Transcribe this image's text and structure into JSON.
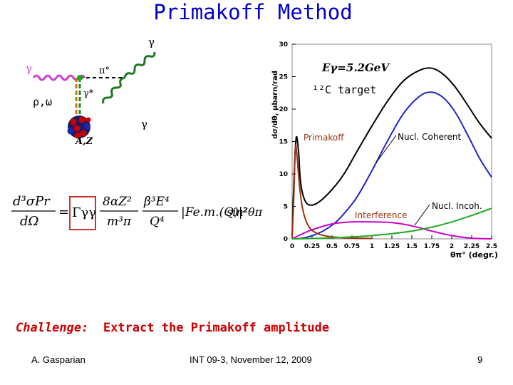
{
  "slide": {
    "title": "Primakoff Method",
    "challenge_label": "Challenge:",
    "challenge_text": "Extract the Primakoff amplitude",
    "footer_author": "A. Gasparian",
    "footer_event": "INT 09-3, November 12, 2009",
    "page_number": "9"
  },
  "diagram": {
    "gamma_in": "γ",
    "gamma_out_top": "γ",
    "gamma_out_bottom": "γ",
    "pion": "π°",
    "virtual_photon": "γ*",
    "exchange": "ρ,ω",
    "nucleus": "A,Z"
  },
  "formula": {
    "lhs_num": "d³σPr",
    "lhs_den": "dΩ",
    "gamma": "Γγγ",
    "frac1_num": "8αZ²",
    "frac1_den": "m³π",
    "frac2_num": "β³E⁴",
    "frac2_den": "Q⁴",
    "form_factor": "|Fe.m.(Q)|²",
    "sin_term": "sin²θπ"
  },
  "chart_data": {
    "type": "line",
    "ylabel": "dσ/dθ, μbarn/rad",
    "xlabel": "θπ° (degr.)",
    "xlim": [
      0,
      2.5
    ],
    "ylim": [
      0,
      30
    ],
    "x_ticks": [
      "0",
      "0.25",
      "0.5",
      "0.75",
      "1",
      "1.25",
      "1.5",
      "1.75",
      "2",
      "2.25",
      "2.5"
    ],
    "y_ticks": [
      "0",
      "5",
      "10",
      "15",
      "20",
      "25",
      "30"
    ],
    "annotation_energy": "Eγ=5.2GeV",
    "annotation_target": "¹²C target",
    "labels": {
      "primakoff": "Primakoff",
      "coherent": "Nucl. Coherent",
      "interference": "Interference",
      "incoherent": "Nucl. Incoh."
    },
    "colors": {
      "total": "#000000",
      "coherent": "#2222cc",
      "primakoff": "#993311",
      "interference": "#cc00cc",
      "incoherent": "#22aa22"
    },
    "series": [
      {
        "key": "total",
        "x": [
          0,
          0.02,
          0.05,
          0.08,
          0.1,
          0.13,
          0.18,
          0.25,
          0.35,
          0.5,
          0.65,
          0.8,
          1.0,
          1.2,
          1.4,
          1.6,
          1.75,
          1.9,
          2.05,
          2.2,
          2.35,
          2.5
        ],
        "y": [
          0.5,
          8,
          15.5,
          13.5,
          9.5,
          7,
          5.5,
          5.2,
          5.8,
          7.6,
          10,
          13.2,
          17.4,
          21.3,
          24.4,
          26,
          26.3,
          25.3,
          23.3,
          20.6,
          17.8,
          15.5
        ]
      },
      {
        "key": "coherent",
        "x": [
          0,
          0.1,
          0.2,
          0.3,
          0.4,
          0.5,
          0.6,
          0.8,
          1.0,
          1.2,
          1.4,
          1.6,
          1.75,
          1.9,
          2.05,
          2.2,
          2.35,
          2.5
        ],
        "y": [
          0,
          0.05,
          0.3,
          0.7,
          1.3,
          2.1,
          3.2,
          6.2,
          10.5,
          15.2,
          19.4,
          22,
          22.6,
          21.7,
          19.4,
          16,
          12.4,
          9.5
        ]
      },
      {
        "key": "primakoff",
        "x": [
          0,
          0.02,
          0.04,
          0.06,
          0.08,
          0.1,
          0.13,
          0.17,
          0.22,
          0.3,
          0.4,
          0.5,
          0.6,
          0.8,
          1.0
        ],
        "y": [
          0,
          6,
          14,
          13,
          9.8,
          7.3,
          4.7,
          2.9,
          1.7,
          0.9,
          0.5,
          0.3,
          0.2,
          0.1,
          0.05
        ]
      },
      {
        "key": "interference",
        "x": [
          0,
          0.1,
          0.25,
          0.5,
          0.75,
          1.0,
          1.25,
          1.5,
          1.75,
          2.0,
          2.25,
          2.5
        ],
        "y": [
          0,
          0.6,
          1.4,
          2.3,
          2.6,
          2.6,
          2.5,
          2.0,
          1.2,
          0.5,
          0.1,
          0
        ]
      },
      {
        "key": "incoherent",
        "x": [
          0,
          0.25,
          0.5,
          0.75,
          1.0,
          1.25,
          1.5,
          1.75,
          2.0,
          2.25,
          2.5
        ],
        "y": [
          0,
          0.05,
          0.15,
          0.3,
          0.5,
          0.8,
          1.2,
          1.8,
          2.6,
          3.6,
          4.7
        ]
      }
    ]
  }
}
